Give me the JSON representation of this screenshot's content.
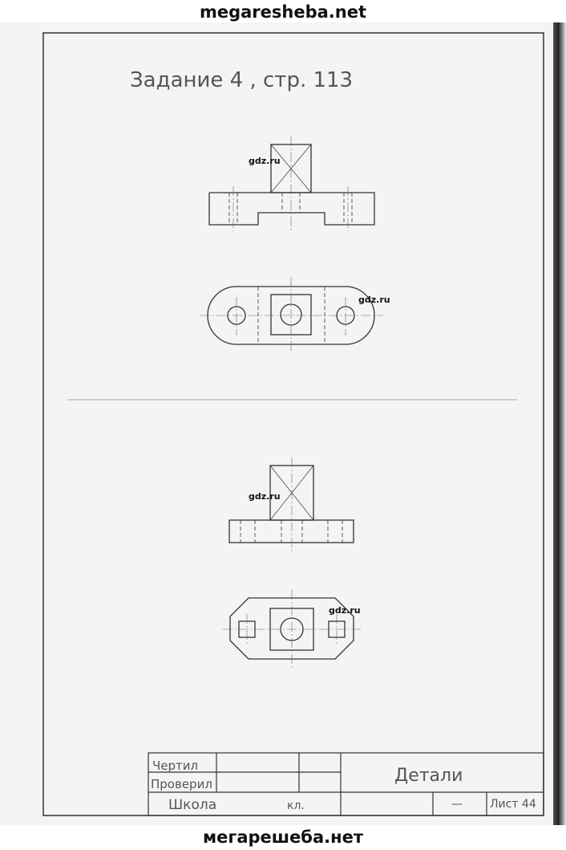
{
  "site": {
    "top_watermark": "megaresheba.net",
    "bottom_watermark": "мегарешеба.нет"
  },
  "drawing": {
    "title": "Задание 4 , стр. 113",
    "watermarks": [
      "gdz.ru",
      "gdz.ru",
      "gdz.ru",
      "gdz.ru"
    ]
  },
  "title_block": {
    "drawn_label": "Чертил",
    "checked_label": "Проверил",
    "school_label": "Школа",
    "class_label": "кл.",
    "name": "Детали",
    "dash": "—",
    "sheet": "Лист 44"
  }
}
